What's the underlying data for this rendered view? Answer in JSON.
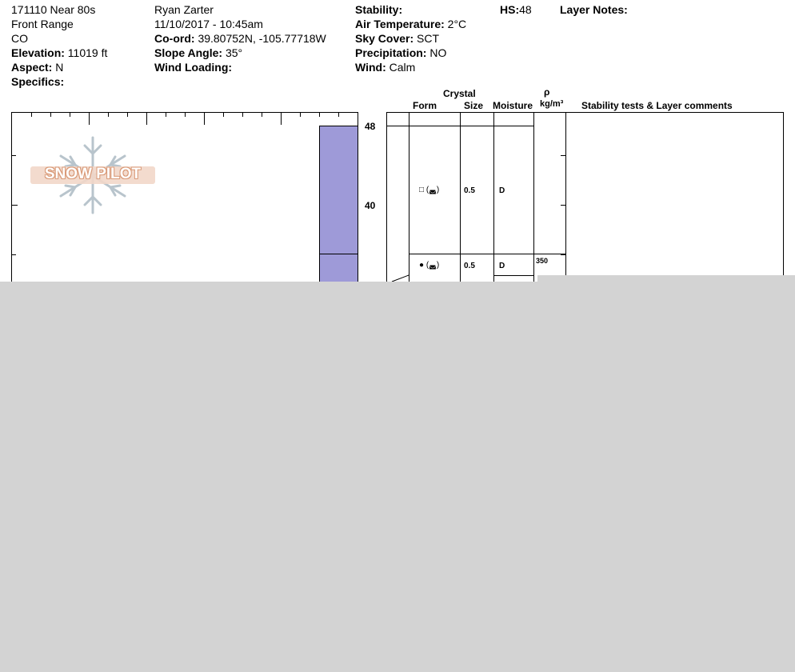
{
  "header": {
    "col1": {
      "title": "171110 Near 80s",
      "range": "Front Range",
      "state": "CO",
      "elevation_label": "Elevation:",
      "elevation": "11019 ft",
      "aspect_label": "Aspect:",
      "aspect": "N",
      "specifics_label": "Specifics:"
    },
    "col2": {
      "observer": "Ryan Zarter",
      "datetime": "11/10/2017 - 10:45am",
      "coord_label": "Co-ord:",
      "coord": "39.80752N, -105.77718W",
      "slope_label": "Slope Angle:",
      "slope": "35°",
      "wind_loading_label": "Wind Loading:"
    },
    "col3": {
      "stability_label": "Stability:",
      "air_temp_label": "Air Temperature:",
      "air_temp": "2°C",
      "sky_label": "Sky Cover:",
      "sky": "SCT",
      "precip_label": "Precipitation:",
      "precip": "NO",
      "wind_label": "Wind:",
      "wind": "Calm"
    },
    "hs_label": "HS:",
    "hs": "48",
    "layer_notes_label": "Layer Notes:"
  },
  "logo": {
    "text": "SNOW PILOT",
    "icon": "snowflake-icon"
  },
  "columns": {
    "crystal": "Crystal",
    "form": "Form",
    "size": "Size",
    "moisture": "Moisture",
    "rho": "ρ",
    "density_unit": "kg/m³",
    "comments": "Stability tests & Layer comments"
  },
  "axis": {
    "ticks": [
      "48",
      "40"
    ]
  },
  "layers": [
    {
      "form_symbol": "□ (◛)",
      "size": "0.5",
      "moisture": "D"
    },
    {
      "form_symbol": "● (◛)",
      "size": "0.5",
      "moisture": "D",
      "density": "350"
    }
  ],
  "colors": {
    "layer_fill": "#9e9ad8",
    "overlay": "#d3d3d3",
    "logo_accent": "#d99a78"
  }
}
